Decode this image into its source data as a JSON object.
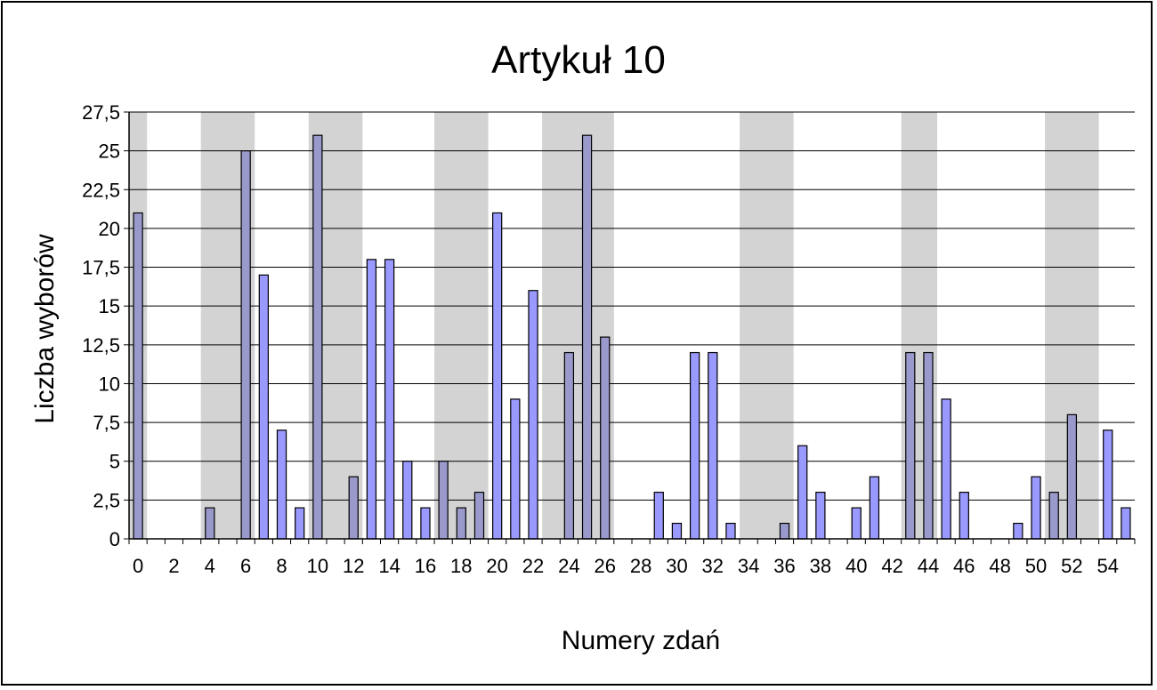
{
  "chart_data": {
    "type": "bar",
    "title": "Artykuł 10",
    "xlabel": "Numery zdań",
    "ylabel": "Liczba wyborów",
    "ylim": [
      0,
      27.5
    ],
    "y_ticks": [
      "0",
      "2,5",
      "5",
      "7,5",
      "10",
      "12,5",
      "15",
      "17,5",
      "20",
      "22,5",
      "25",
      "27,5"
    ],
    "x_tick_labels": [
      "0",
      "2",
      "4",
      "6",
      "8",
      "10",
      "12",
      "14",
      "16",
      "18",
      "20",
      "22",
      "24",
      "26",
      "28",
      "30",
      "32",
      "34",
      "36",
      "38",
      "40",
      "42",
      "44",
      "46",
      "48",
      "50",
      "52",
      "54"
    ],
    "grid": "horizontal",
    "legend": "none",
    "categories": [
      0,
      1,
      2,
      3,
      4,
      5,
      6,
      7,
      8,
      9,
      10,
      11,
      12,
      13,
      14,
      15,
      16,
      17,
      18,
      19,
      20,
      21,
      22,
      23,
      24,
      25,
      26,
      27,
      28,
      29,
      30,
      31,
      32,
      33,
      34,
      35,
      36,
      37,
      38,
      39,
      40,
      41,
      42,
      43,
      44,
      45,
      46,
      47,
      48,
      49,
      50,
      51,
      52,
      53,
      54,
      55
    ],
    "values": [
      21,
      0,
      0,
      0,
      2,
      0,
      25,
      17,
      7,
      2,
      26,
      0,
      4,
      18,
      18,
      5,
      2,
      5,
      2,
      3,
      21,
      9,
      16,
      0,
      12,
      26,
      13,
      0,
      0,
      3,
      1,
      12,
      12,
      1,
      0,
      0,
      1,
      6,
      3,
      0,
      2,
      4,
      0,
      12,
      12,
      9,
      3,
      0,
      0,
      1,
      4,
      3,
      8,
      0,
      7,
      2
    ],
    "shaded_ranges": [
      [
        0,
        0
      ],
      [
        4,
        6
      ],
      [
        10,
        12
      ],
      [
        17,
        19
      ],
      [
        23,
        26
      ],
      [
        34,
        36
      ],
      [
        43,
        44
      ],
      [
        51,
        53
      ]
    ],
    "colors": {
      "bar_fill": "#9999ff",
      "bar_fill_shaded": "#9999cc",
      "shade": "#d3d3d3",
      "gridline": "#000000"
    }
  }
}
